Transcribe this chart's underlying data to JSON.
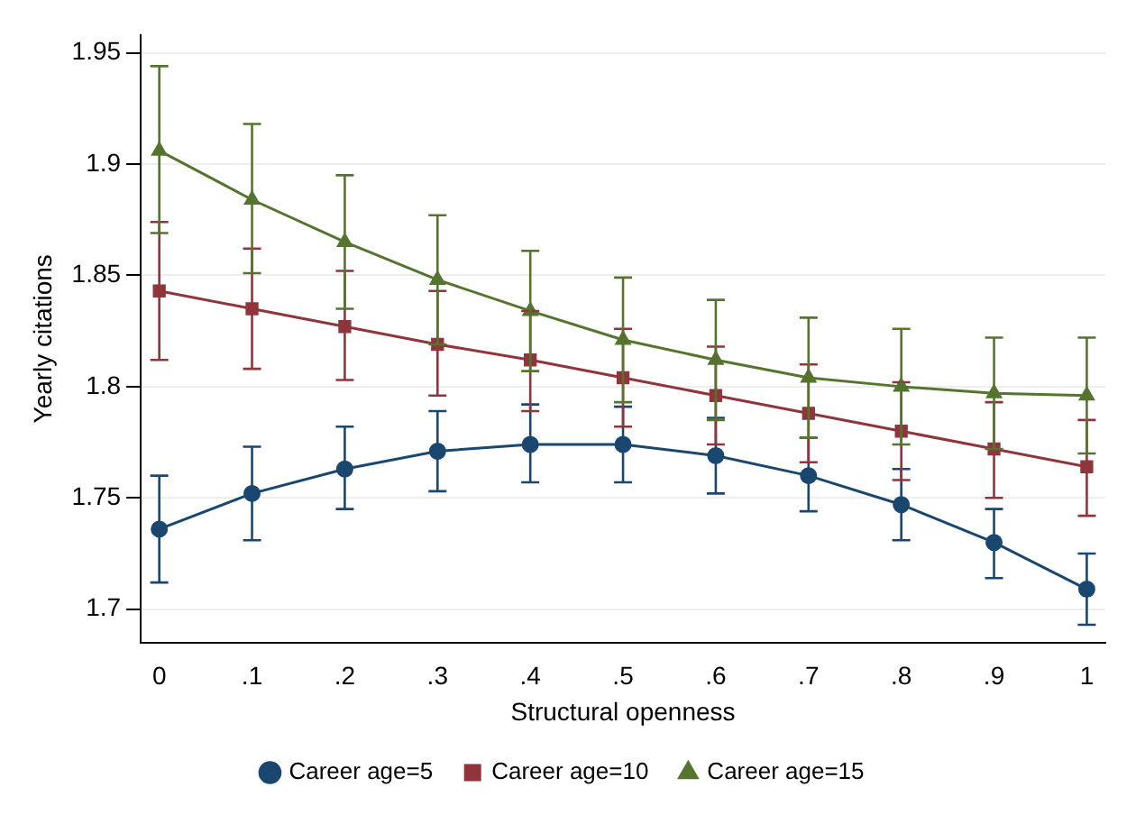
{
  "chart_data": {
    "type": "line",
    "xlabel": "Structural openness",
    "ylabel": "Yearly citations",
    "x": [
      0,
      0.1,
      0.2,
      0.3,
      0.4,
      0.5,
      0.6,
      0.7,
      0.8,
      0.9,
      1
    ],
    "series": [
      {
        "name": "Career age=5",
        "color": "#1a476f",
        "marker": "circle",
        "values": [
          1.736,
          1.752,
          1.763,
          1.771,
          1.774,
          1.774,
          1.769,
          1.76,
          1.747,
          1.73,
          1.709
        ],
        "errors": [
          [
            1.712,
            1.76
          ],
          [
            1.731,
            1.773
          ],
          [
            1.745,
            1.782
          ],
          [
            1.753,
            1.789
          ],
          [
            1.757,
            1.792
          ],
          [
            1.757,
            1.791
          ],
          [
            1.752,
            1.786
          ],
          [
            1.744,
            1.777
          ],
          [
            1.731,
            1.763
          ],
          [
            1.714,
            1.745
          ],
          [
            1.693,
            1.725
          ]
        ]
      },
      {
        "name": "Career age=10",
        "color": "#90353b",
        "marker": "square",
        "values": [
          1.843,
          1.835,
          1.827,
          1.819,
          1.812,
          1.804,
          1.796,
          1.788,
          1.78,
          1.772,
          1.764
        ],
        "errors": [
          [
            1.812,
            1.874
          ],
          [
            1.808,
            1.862
          ],
          [
            1.803,
            1.852
          ],
          [
            1.796,
            1.843
          ],
          [
            1.789,
            1.834
          ],
          [
            1.782,
            1.826
          ],
          [
            1.774,
            1.818
          ],
          [
            1.766,
            1.81
          ],
          [
            1.758,
            1.802
          ],
          [
            1.75,
            1.793
          ],
          [
            1.742,
            1.785
          ]
        ]
      },
      {
        "name": "Career age=15",
        "color": "#55752f",
        "marker": "triangle",
        "values": [
          1.906,
          1.884,
          1.865,
          1.848,
          1.834,
          1.821,
          1.812,
          1.804,
          1.8,
          1.797,
          1.796
        ],
        "errors": [
          [
            1.869,
            1.944
          ],
          [
            1.851,
            1.918
          ],
          [
            1.835,
            1.895
          ],
          [
            1.819,
            1.877
          ],
          [
            1.807,
            1.861
          ],
          [
            1.793,
            1.849
          ],
          [
            1.785,
            1.839
          ],
          [
            1.777,
            1.831
          ],
          [
            1.774,
            1.826
          ],
          [
            1.772,
            1.822
          ],
          [
            1.77,
            1.822
          ]
        ]
      }
    ],
    "xlim": [
      -0.02,
      1.02
    ],
    "xticks": [
      0,
      {
        "value": 0.1,
        "label": ".1"
      },
      {
        "value": 0.2,
        "label": ".2"
      },
      {
        "value": 0.3,
        "label": ".3"
      },
      {
        "value": 0.4,
        "label": ".4"
      },
      {
        "value": 0.5,
        "label": ".5"
      },
      {
        "value": 0.6,
        "label": ".6"
      },
      {
        "value": 0.7,
        "label": ".7"
      },
      {
        "value": 0.8,
        "label": ".8"
      },
      {
        "value": 0.9,
        "label": ".9"
      },
      1
    ],
    "ylim": [
      1.685,
      1.958
    ],
    "yticks": [
      1.7,
      1.75,
      1.8,
      1.85,
      1.9,
      1.95
    ],
    "grid": "y",
    "legend": "bottom",
    "line_style": "solid"
  }
}
